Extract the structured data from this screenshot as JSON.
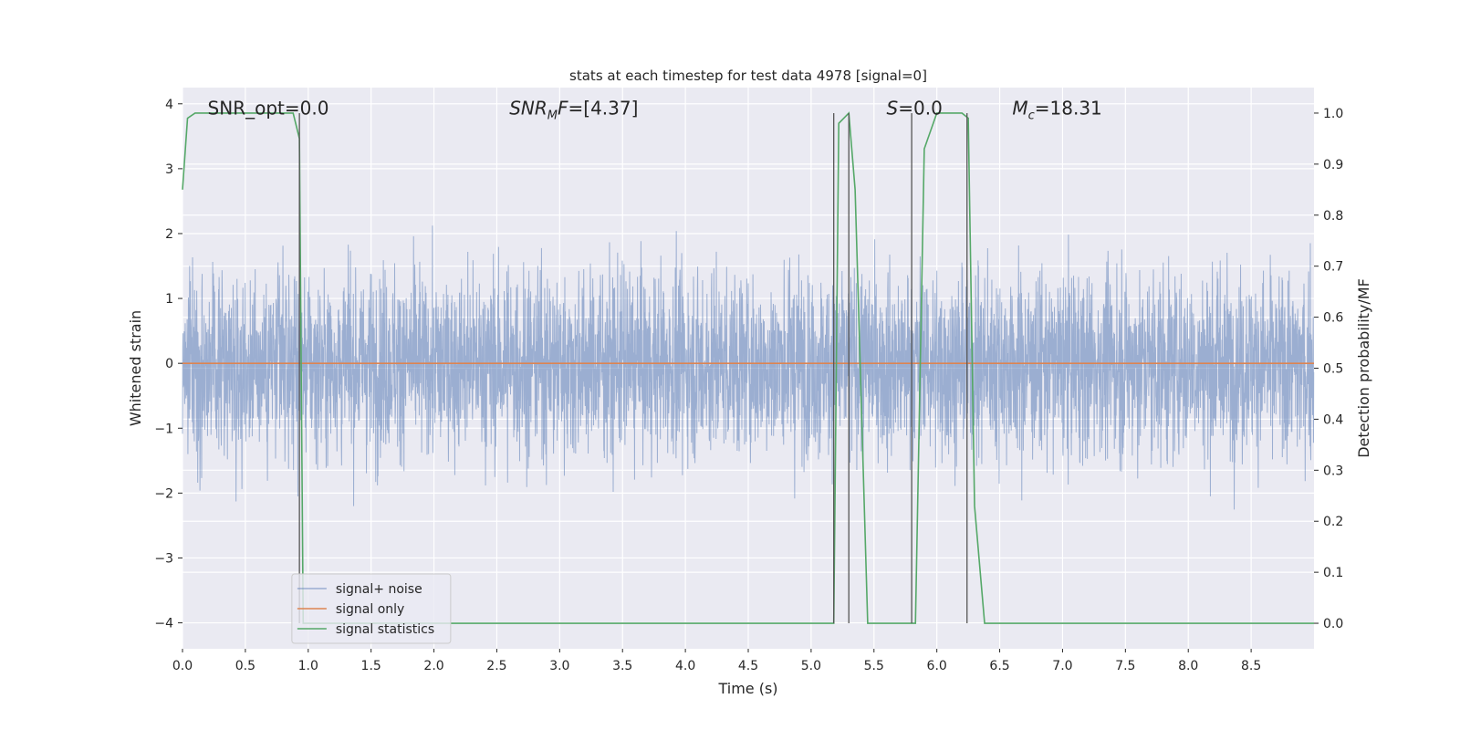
{
  "chart_data": {
    "type": "line",
    "title": "stats at each timestep for test data 4978 [signal=0]",
    "xlabel": "Time (s)",
    "ylabel_left": "Whitened strain",
    "ylabel_right": "Detection probability/MF",
    "xlim": [
      0.0,
      9.0
    ],
    "ylim_left": [
      -4.4,
      4.25
    ],
    "ylim_right": [
      -0.05,
      1.05
    ],
    "x_ticks": [
      0.0,
      0.5,
      1.0,
      1.5,
      2.0,
      2.5,
      3.0,
      3.5,
      4.0,
      4.5,
      5.0,
      5.5,
      6.0,
      6.5,
      7.0,
      7.5,
      8.0,
      8.5
    ],
    "x_tick_labels": [
      "0.0",
      "0.5",
      "1.0",
      "1.5",
      "2.0",
      "2.5",
      "3.0",
      "3.5",
      "4.0",
      "4.5",
      "5.0",
      "5.5",
      "6.0",
      "6.5",
      "7.0",
      "7.5",
      "8.0",
      "8.5"
    ],
    "y_left_ticks": [
      -4,
      -3,
      -2,
      -1,
      0,
      1,
      2,
      3,
      4
    ],
    "y_left_tick_labels": [
      "−4",
      "−3",
      "−2",
      "−1",
      "0",
      "1",
      "2",
      "3",
      "4"
    ],
    "y_right_ticks": [
      0.0,
      0.1,
      0.2,
      0.3,
      0.4,
      0.5,
      0.6,
      0.7,
      0.8,
      0.9,
      1.0
    ],
    "y_right_tick_labels": [
      "0.0",
      "0.1",
      "0.2",
      "0.3",
      "0.4",
      "0.5",
      "0.6",
      "0.7",
      "0.8",
      "0.9",
      "1.0"
    ],
    "grid": true,
    "legend_placement": "lower-left",
    "annotations": [
      {
        "text": "SNR_opt=0.0",
        "x": 0.2,
        "y": 3.95
      },
      {
        "text": "SNR",
        "sub": "M",
        "suffix": "F=[4.37]",
        "x": 2.6,
        "y": 3.95,
        "italic": true
      },
      {
        "text": "S",
        "suffix": "=0.0",
        "x": 5.6,
        "y": 3.95,
        "italic": true
      },
      {
        "text": "M",
        "sub": "c",
        "suffix": "=18.31",
        "x": 6.6,
        "y": 3.95,
        "italic": true
      }
    ],
    "series": [
      {
        "name": "signal+ noise",
        "color": "#4c72b0",
        "opacity": 0.5,
        "axis": "left",
        "kind": "noise",
        "sample_rate": 512,
        "envelope_upper": 2.2,
        "envelope_lower": -1.9
      },
      {
        "name": "signal only",
        "color": "#dd8452",
        "axis": "left",
        "x": [
          0.0,
          9.0
        ],
        "y": [
          0.0,
          0.0
        ]
      },
      {
        "name": "signal statistics",
        "color": "#55a868",
        "axis": "right",
        "x": [
          0.0,
          0.04,
          0.1,
          0.5,
          0.88,
          0.93,
          0.96,
          1.0,
          5.1,
          5.18,
          5.22,
          5.3,
          5.35,
          5.45,
          5.8,
          5.83,
          5.9,
          6.0,
          6.2,
          6.25,
          6.3,
          6.38,
          9.0
        ],
        "y": [
          0.85,
          0.99,
          1.0,
          1.0,
          1.0,
          0.95,
          0.0,
          0.0,
          0.0,
          0.0,
          0.98,
          1.0,
          0.85,
          0.0,
          0.0,
          0.0,
          0.93,
          1.0,
          1.0,
          0.99,
          0.23,
          0.0,
          0.0
        ]
      },
      {
        "name": "",
        "color": "#555555",
        "axis": "right",
        "kind": "vlines",
        "x": [
          0.93,
          5.18,
          5.3,
          5.8,
          6.24
        ],
        "y_top": 1.0,
        "y_bottom": 0.0
      }
    ],
    "right_axis_gridlines": [
      0.1,
      0.2,
      0.3,
      0.4,
      0.5,
      0.6,
      0.7,
      0.8,
      0.9
    ]
  }
}
